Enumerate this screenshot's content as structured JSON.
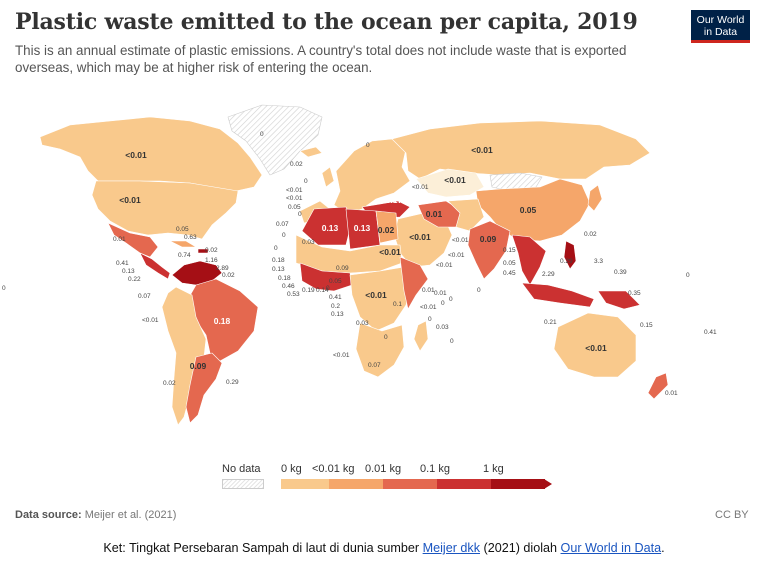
{
  "header": {
    "title": "Plastic waste emitted to the ocean per capita, 2019",
    "subtitle": "This is an annual estimate of plastic emissions. A country's total does not include waste that is exported overseas, which may be at higher risk of entering the ocean."
  },
  "logo": {
    "line1": "Our World",
    "line2": "in Data"
  },
  "legend": {
    "no_data": "No data",
    "ticks": [
      "0 kg",
      "<0.01 kg",
      "0.01 kg",
      "0.1 kg",
      "1 kg"
    ],
    "colors": [
      "#fcefd8",
      "#f9c98c",
      "#f5a66a",
      "#e4684f",
      "#cb3131",
      "#a50f15"
    ]
  },
  "map_labels": [
    {
      "name": "canada",
      "text": "<0.01",
      "style": "l"
    },
    {
      "name": "united-states",
      "text": "<0.01",
      "style": "l"
    },
    {
      "name": "russia",
      "text": "<0.01",
      "style": "l"
    },
    {
      "name": "kazakhstan",
      "text": "<0.01",
      "style": "l"
    },
    {
      "name": "china",
      "text": "0.05",
      "style": "l"
    },
    {
      "name": "australia",
      "text": "<0.01",
      "style": "l"
    },
    {
      "name": "brazil",
      "text": "0.18",
      "style": "w"
    },
    {
      "name": "algeria",
      "text": "0.13",
      "style": "w"
    },
    {
      "name": "libya",
      "text": "0.13",
      "style": "w"
    },
    {
      "name": "turkey",
      "text": "0.17",
      "style": "w"
    },
    {
      "name": "iran",
      "text": "0.01",
      "style": "l"
    },
    {
      "name": "india",
      "text": "0.09",
      "style": "l"
    },
    {
      "name": "egypt",
      "text": "0.02",
      "style": "l"
    },
    {
      "name": "saudi-arabia",
      "text": "<0.01",
      "style": "l"
    },
    {
      "name": "sudan",
      "text": "<0.01",
      "style": "l"
    },
    {
      "name": "argentina",
      "text": "0.09",
      "style": "l"
    },
    {
      "name": "drc",
      "text": "<0.01",
      "style": "l"
    },
    {
      "name": "mexico",
      "text": "0.01",
      "style": "s"
    },
    {
      "name": "mali",
      "text": "0.03",
      "style": "s"
    },
    {
      "name": "nigeria",
      "text": "0.09",
      "style": "s"
    },
    {
      "name": "tanzania",
      "text": "0.1",
      "style": "s"
    },
    {
      "name": "angola",
      "text": "0.03",
      "style": "s"
    },
    {
      "name": "namibia",
      "text": "<0.01",
      "style": "s"
    },
    {
      "name": "botswana",
      "text": "0",
      "style": "s"
    },
    {
      "name": "south-africa",
      "text": "0.07",
      "style": "s"
    },
    {
      "name": "ukraine",
      "text": "<0.01",
      "style": "s"
    },
    {
      "name": "mongolia",
      "text": "0",
      "style": "s"
    },
    {
      "name": "greenland",
      "text": "0",
      "style": "s"
    },
    {
      "name": "iceland",
      "text": "0.02",
      "style": "s"
    },
    {
      "name": "norway",
      "text": "0",
      "style": "s"
    },
    {
      "name": "uk-a",
      "text": "<0.01",
      "style": "s"
    },
    {
      "name": "uk-b",
      "text": "<0.01",
      "style": "s"
    },
    {
      "name": "france",
      "text": "0.05",
      "style": "s"
    },
    {
      "name": "spain",
      "text": "0",
      "style": "s"
    },
    {
      "name": "morocco",
      "text": "0.07",
      "style": "s"
    },
    {
      "name": "western-sahara",
      "text": "0",
      "style": "s"
    },
    {
      "name": "mauritania",
      "text": "0",
      "style": "s"
    },
    {
      "name": "senegal",
      "text": "0.18",
      "style": "s"
    },
    {
      "name": "guinea-bissau",
      "text": "0.13",
      "style": "s"
    },
    {
      "name": "sierra-leone",
      "text": "0.18",
      "style": "s"
    },
    {
      "name": "liberia",
      "text": "0.46",
      "style": "s"
    },
    {
      "name": "ivory-coast",
      "text": "0.53",
      "style": "s"
    },
    {
      "name": "ghana",
      "text": "0.19",
      "style": "s"
    },
    {
      "name": "togo",
      "text": "0.14",
      "style": "s"
    },
    {
      "name": "benin",
      "text": "0",
      "style": "s"
    },
    {
      "name": "cameroon",
      "text": "0.05",
      "style": "s"
    },
    {
      "name": "gabon",
      "text": "0.41",
      "style": "s"
    },
    {
      "name": "congo",
      "text": "0.2",
      "style": "s"
    },
    {
      "name": "car",
      "text": "0.13",
      "style": "s"
    },
    {
      "name": "somalia",
      "text": "0.01",
      "style": "s"
    },
    {
      "name": "kenya",
      "text": "<0.01",
      "style": "s"
    },
    {
      "name": "seychelles",
      "text": "0",
      "style": "s"
    },
    {
      "name": "comoros",
      "text": "0.03",
      "style": "s"
    },
    {
      "name": "mauritius",
      "text": "0",
      "style": "s"
    },
    {
      "name": "madagascar",
      "text": "0",
      "style": "s"
    },
    {
      "name": "yemen",
      "text": "0.01",
      "style": "s"
    },
    {
      "name": "oman",
      "text": "<0.01",
      "style": "s"
    },
    {
      "name": "uae",
      "text": "<0.01",
      "style": "s"
    },
    {
      "name": "pakistan",
      "text": "<0.01",
      "style": "s"
    },
    {
      "name": "maldives",
      "text": "0",
      "style": "s"
    },
    {
      "name": "bangladesh",
      "text": "0.15",
      "style": "s"
    },
    {
      "name": "myanmar",
      "text": "0.05",
      "style": "s"
    },
    {
      "name": "sri-lanka",
      "text": "0.45",
      "style": "s"
    },
    {
      "name": "thailand",
      "text": "2.29",
      "style": "s"
    },
    {
      "name": "malaysia",
      "text": "0.29",
      "style": "s"
    },
    {
      "name": "philippines",
      "text": "3.3",
      "style": "s"
    },
    {
      "name": "taiwan",
      "text": "0.02",
      "style": "s"
    },
    {
      "name": "palau",
      "text": "0.39",
      "style": "s"
    },
    {
      "name": "micronesia",
      "text": "0",
      "style": "s"
    },
    {
      "name": "png",
      "text": "0.35",
      "style": "s"
    },
    {
      "name": "timor-leste",
      "text": "0.21",
      "style": "s"
    },
    {
      "name": "solomon",
      "text": "0.15",
      "style": "s"
    },
    {
      "name": "vanuatu",
      "text": "0.41",
      "style": "s"
    },
    {
      "name": "new-zealand",
      "text": "0.01",
      "style": "s"
    },
    {
      "name": "cuba",
      "text": "0.05",
      "style": "s"
    },
    {
      "name": "jamaica",
      "text": "0.63",
      "style": "s"
    },
    {
      "name": "bahamas",
      "text": "0.02",
      "style": "s"
    },
    {
      "name": "haiti",
      "text": "0.74",
      "style": "s"
    },
    {
      "name": "dominican-rep",
      "text": "1.16",
      "style": "s"
    },
    {
      "name": "trinidad",
      "text": "2.89",
      "style": "s"
    },
    {
      "name": "suriname",
      "text": "0.02",
      "style": "s"
    },
    {
      "name": "guatemala",
      "text": "0.41",
      "style": "s"
    },
    {
      "name": "honduras",
      "text": "0.13",
      "style": "s"
    },
    {
      "name": "costa-rica",
      "text": "0.22",
      "style": "s"
    },
    {
      "name": "ecuador",
      "text": "0.07",
      "style": "s"
    },
    {
      "name": "peru",
      "text": "<0.01",
      "style": "s"
    },
    {
      "name": "chile",
      "text": "0.02",
      "style": "s"
    },
    {
      "name": "uruguay",
      "text": "0.29",
      "style": "s"
    },
    {
      "name": "pacific-west",
      "text": "0",
      "style": "s"
    },
    {
      "name": "pacific-east",
      "text": "0",
      "style": "s"
    }
  ],
  "footer": {
    "source_label": "Data source:",
    "source_text": "Meijer et al. (2021)",
    "license": "CC BY"
  },
  "caption": {
    "prefix": "Ket: Tingkat Persebaran Sampah di laut di dunia sumber ",
    "link1": "Meijer dkk",
    "middle": " (2021) diolah ",
    "link2": "Our World in Data",
    "suffix": "."
  }
}
